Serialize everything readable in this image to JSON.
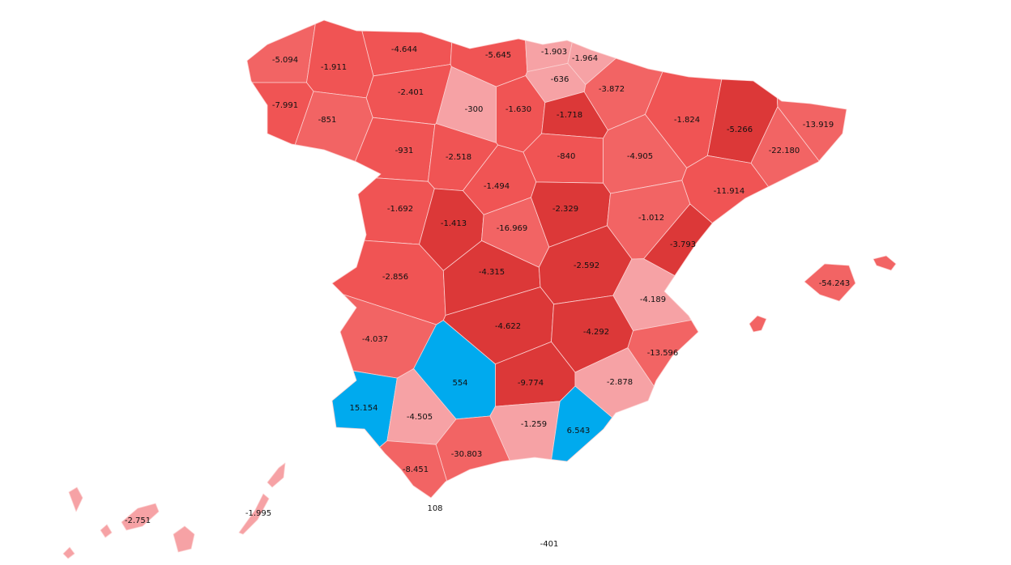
{
  "regions": [
    {
      "label": "-5.094",
      "color": "#f26464"
    },
    {
      "label": "-1.911",
      "color": "#f05454"
    },
    {
      "label": "-4.644",
      "color": "#f05454"
    },
    {
      "label": "-5.645",
      "color": "#f05454"
    },
    {
      "label": "-1.903",
      "color": "#f6a2a5"
    },
    {
      "label": "-1.964",
      "color": "#f6a2a5"
    },
    {
      "label": "-636",
      "color": "#f6a2a5"
    },
    {
      "label": "-7.991",
      "color": "#f05454"
    },
    {
      "label": "-851",
      "color": "#f26464"
    },
    {
      "label": "-2.401",
      "color": "#f05454"
    },
    {
      "label": "-300",
      "color": "#f6a2a5"
    },
    {
      "label": "-1.630",
      "color": "#f05454"
    },
    {
      "label": "-1.718",
      "color": "#dc3838"
    },
    {
      "label": "-3.872",
      "color": "#f26464"
    },
    {
      "label": "-1.824",
      "color": "#f05454"
    },
    {
      "label": "-5.266",
      "color": "#dc3838"
    },
    {
      "label": "-13.919",
      "color": "#f26464"
    },
    {
      "label": "-22.180",
      "color": "#f26464"
    },
    {
      "label": "-931",
      "color": "#f05454"
    },
    {
      "label": "-2.518",
      "color": "#f05454"
    },
    {
      "label": "-840",
      "color": "#f05454"
    },
    {
      "label": "-4.905",
      "color": "#f26464"
    },
    {
      "label": "-11.914",
      "color": "#f05454"
    },
    {
      "label": "-1.494",
      "color": "#f05454"
    },
    {
      "label": "-1.692",
      "color": "#f05454"
    },
    {
      "label": "-1.413",
      "color": "#dc3838"
    },
    {
      "label": "-16.969",
      "color": "#f26464"
    },
    {
      "label": "-2.329",
      "color": "#dc3838"
    },
    {
      "label": "-1.012",
      "color": "#f26464"
    },
    {
      "label": "-3.793",
      "color": "#dc3838"
    },
    {
      "label": "-2.856",
      "color": "#f05454"
    },
    {
      "label": "-4.315",
      "color": "#dc3838"
    },
    {
      "label": "-2.592",
      "color": "#dc3838"
    },
    {
      "label": "-4.189",
      "color": "#f6a2a5"
    },
    {
      "label": "-4.037",
      "color": "#f26464"
    },
    {
      "label": "-4.622",
      "color": "#dc3838"
    },
    {
      "label": "-4.292",
      "color": "#dc3838"
    },
    {
      "label": "-13.596",
      "color": "#f26464"
    },
    {
      "label": "554",
      "color": "#00aaee"
    },
    {
      "label": "-9.774",
      "color": "#dc3838"
    },
    {
      "label": "-2.878",
      "color": "#f6a2a5"
    },
    {
      "label": "15.154",
      "color": "#00aaee"
    },
    {
      "label": "-4.505",
      "color": "#f6a2a5"
    },
    {
      "label": "-1.259",
      "color": "#f6a2a5"
    },
    {
      "label": "6.543",
      "color": "#00aaee"
    },
    {
      "label": "-30.803",
      "color": "#f26464"
    },
    {
      "label": "-8.451",
      "color": "#f26464"
    }
  ],
  "islands": [
    {
      "label": "-54.243",
      "color": "#f26464"
    },
    {
      "label": "-2.751",
      "color": "#f6a2a5"
    },
    {
      "label": "-1.995",
      "color": "#f6a2a5"
    }
  ],
  "cities": [
    {
      "label": "108"
    },
    {
      "label": "-401"
    }
  ]
}
